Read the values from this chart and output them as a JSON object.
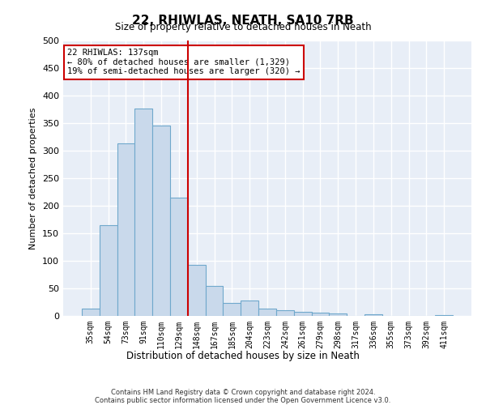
{
  "title": "22, RHIWLAS, NEATH, SA10 7RB",
  "subtitle": "Size of property relative to detached houses in Neath",
  "xlabel": "Distribution of detached houses by size in Neath",
  "ylabel": "Number of detached properties",
  "categories": [
    "35sqm",
    "54sqm",
    "73sqm",
    "91sqm",
    "110sqm",
    "129sqm",
    "148sqm",
    "167sqm",
    "185sqm",
    "204sqm",
    "223sqm",
    "242sqm",
    "261sqm",
    "279sqm",
    "298sqm",
    "317sqm",
    "336sqm",
    "355sqm",
    "373sqm",
    "392sqm",
    "411sqm"
  ],
  "values": [
    13,
    165,
    313,
    377,
    345,
    215,
    93,
    55,
    23,
    28,
    13,
    10,
    8,
    6,
    4,
    0,
    3,
    0,
    0,
    0,
    2
  ],
  "bar_color": "#c9d9eb",
  "bar_edge_color": "#6fa8cc",
  "vline_x": 5.5,
  "vline_color": "#cc0000",
  "annotation_text": "22 RHIWLAS: 137sqm\n← 80% of detached houses are smaller (1,329)\n19% of semi-detached houses are larger (320) →",
  "annotation_box_color": "#ffffff",
  "annotation_box_edge": "#cc0000",
  "footer": "Contains HM Land Registry data © Crown copyright and database right 2024.\nContains public sector information licensed under the Open Government Licence v3.0.",
  "ylim": [
    0,
    500
  ],
  "background_color": "#e8eef7",
  "grid_color": "#ffffff"
}
